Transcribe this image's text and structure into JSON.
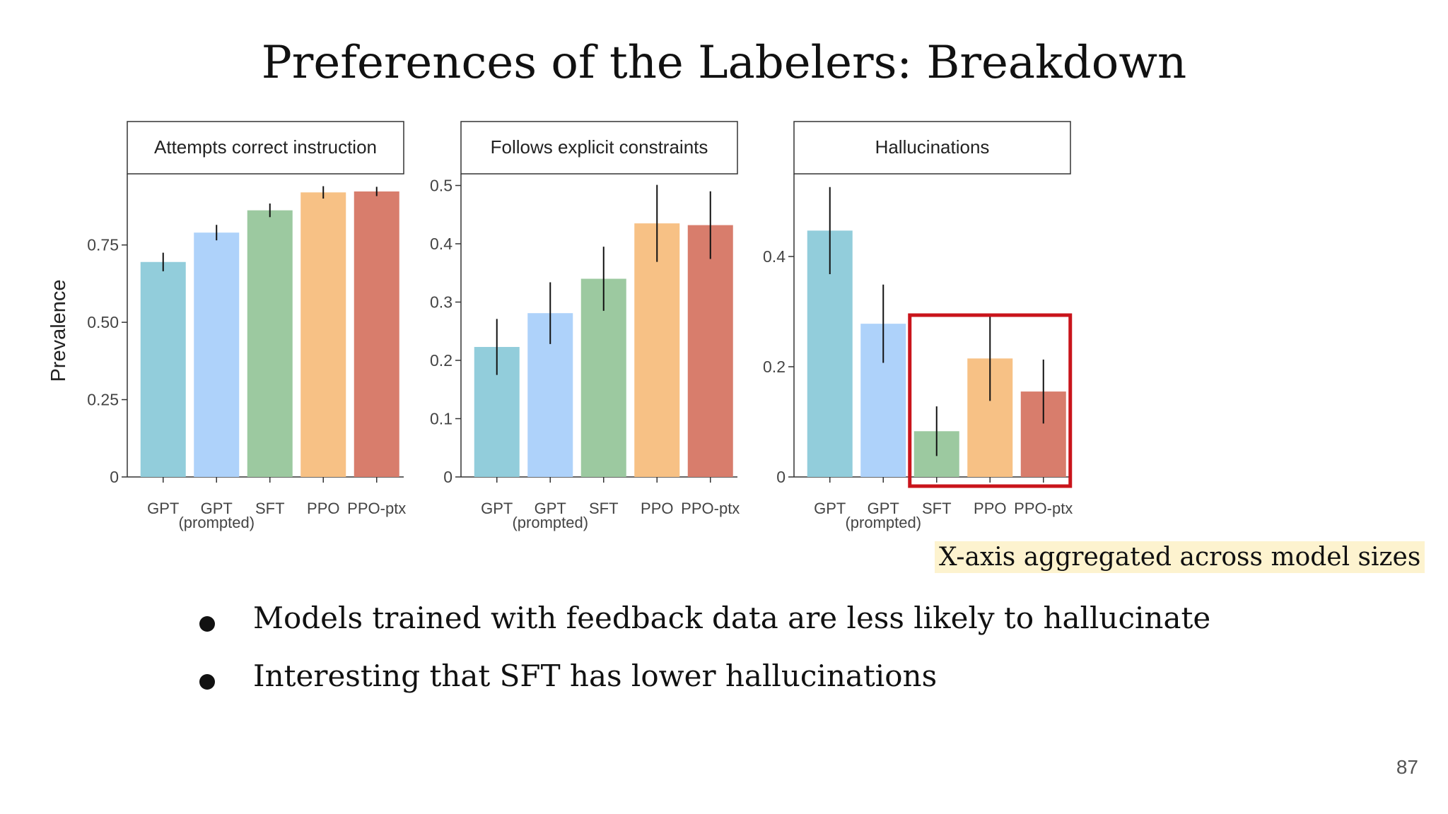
{
  "slide": {
    "title": "Preferences of the Labelers: Breakdown",
    "note": "X-axis aggregated across model sizes",
    "bullets": [
      "Models trained with feedback data are less likely to hallucinate",
      "Interesting that SFT has lower hallucinations"
    ],
    "page_number": "87"
  },
  "colors": {
    "GPT": "#92cddb",
    "GPT (prompted)": "#aed2fa",
    "SFT": "#9cc9a0",
    "PPO": "#f7c185",
    "PPO-ptx": "#d87d6c",
    "highlight": "#c9141b"
  },
  "chart_data": [
    {
      "type": "bar",
      "title": "Attempts correct instruction",
      "ylabel": "Prevalence",
      "categories": [
        "GPT",
        "GPT (prompted)",
        "SFT",
        "PPO",
        "PPO-ptx"
      ],
      "category_labels": [
        [
          "GPT"
        ],
        [
          "GPT",
          "(prompted)"
        ],
        [
          "SFT"
        ],
        [
          "PPO"
        ],
        [
          "PPO-ptx"
        ]
      ],
      "values": [
        0.695,
        0.79,
        0.862,
        0.92,
        0.923
      ],
      "error_bars": [
        [
          0.665,
          0.725
        ],
        [
          0.765,
          0.815
        ],
        [
          0.84,
          0.884
        ],
        [
          0.9,
          0.94
        ],
        [
          0.908,
          0.938
        ]
      ],
      "yticks": [
        0,
        0.25,
        0.5,
        0.75
      ],
      "ytick_labels": [
        "0",
        "0.25",
        "0.50",
        "0.75"
      ],
      "ylim": [
        0,
        0.98
      ]
    },
    {
      "type": "bar",
      "title": "Follows explicit constraints",
      "ylabel": "",
      "categories": [
        "GPT",
        "GPT (prompted)",
        "SFT",
        "PPO",
        "PPO-ptx"
      ],
      "category_labels": [
        [
          "GPT"
        ],
        [
          "GPT",
          "(prompted)"
        ],
        [
          "SFT"
        ],
        [
          "PPO"
        ],
        [
          "PPO-ptx"
        ]
      ],
      "values": [
        0.223,
        0.281,
        0.34,
        0.435,
        0.432
      ],
      "error_bars": [
        [
          0.175,
          0.271
        ],
        [
          0.228,
          0.334
        ],
        [
          0.285,
          0.395
        ],
        [
          0.369,
          0.501
        ],
        [
          0.374,
          0.49
        ]
      ],
      "yticks": [
        0,
        0.1,
        0.2,
        0.3,
        0.4,
        0.5
      ],
      "ytick_labels": [
        "0",
        "0.1",
        "0.2",
        "0.3",
        "0.4",
        "0.5"
      ],
      "ylim": [
        0,
        0.52
      ]
    },
    {
      "type": "bar",
      "title": "Hallucinations",
      "ylabel": "",
      "categories": [
        "GPT",
        "GPT (prompted)",
        "SFT",
        "PPO",
        "PPO-ptx"
      ],
      "category_labels": [
        [
          "GPT"
        ],
        [
          "GPT",
          "(prompted)"
        ],
        [
          "SFT"
        ],
        [
          "PPO"
        ],
        [
          "PPO-ptx"
        ]
      ],
      "values": [
        0.447,
        0.278,
        0.083,
        0.215,
        0.155
      ],
      "error_bars": [
        [
          0.368,
          0.526
        ],
        [
          0.207,
          0.349
        ],
        [
          0.038,
          0.128
        ],
        [
          0.138,
          0.292
        ],
        [
          0.097,
          0.213
        ]
      ],
      "yticks": [
        0,
        0.2,
        0.4
      ],
      "ytick_labels": [
        "0",
        "0.2",
        "0.4"
      ],
      "ylim": [
        0,
        0.55
      ],
      "highlight_categories": [
        "SFT",
        "PPO",
        "PPO-ptx"
      ]
    }
  ]
}
